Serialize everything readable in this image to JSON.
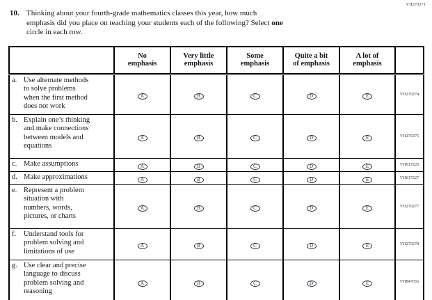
{
  "page": {
    "form_code": "VH270271"
  },
  "question": {
    "number": "10.",
    "line1": "Thinking about your fourth-grade mathematics classes this year, how much",
    "line2_pre": "emphasis did you place on teaching your students each of the following? Select ",
    "line2_bold": "one",
    "line3": "circle in each row."
  },
  "table": {
    "header": [
      {
        "line1": "No",
        "line2": "emphasis"
      },
      {
        "line1": "Very little",
        "line2": "emphasis"
      },
      {
        "line1": "Some",
        "line2": "emphasis"
      },
      {
        "line1": "Quite a bit",
        "line2": "of emphasis"
      },
      {
        "line1": "A lot of",
        "line2": "emphasis"
      }
    ],
    "bubble_letters": [
      "A",
      "B",
      "C",
      "D",
      "E"
    ],
    "rows": [
      {
        "letter": "a.",
        "label": "Use alternate methods\nto solve problems\nwhen the first method\ndoes not work",
        "code": "VH270274"
      },
      {
        "letter": "b.",
        "label": "Explain one’s thinking\nand make connections\nbetween models and\nequations",
        "code": "VH270275"
      },
      {
        "letter": "c.",
        "label": "Make assumptions",
        "code": "VH617226"
      },
      {
        "letter": "d.",
        "label": "Make approximations",
        "code": "VH617227"
      },
      {
        "letter": "e.",
        "label": "Represent a problem\nsituation with\nnumbers, words,\npictures, or charts",
        "code": "VH270277"
      },
      {
        "letter": "f.",
        "label": "Understand tools for\nproblem solving and\nlimitations of use",
        "code": "VH270278"
      },
      {
        "letter": "g.",
        "label": "Use clear and precise\nlanguage to discuss\nproblem solving and\nreasoning",
        "code": "VH847655"
      }
    ]
  },
  "colors": {
    "ink": "#16161f",
    "border": "#000000",
    "bubble": "#2a2a3a",
    "background": "#ffffff"
  }
}
